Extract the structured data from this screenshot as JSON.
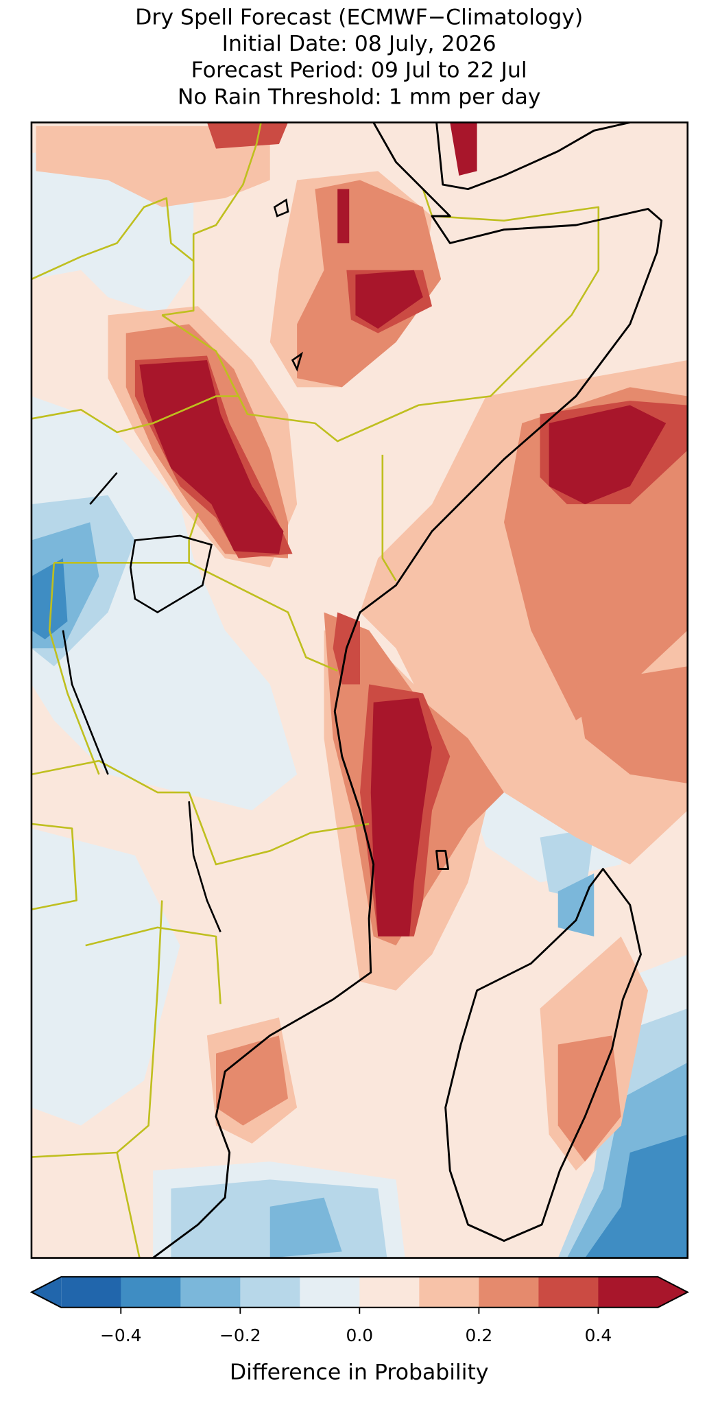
{
  "map": {
    "title_lines": [
      "Dry Spell Forecast (ECMWF−Climatology)",
      "Initial Date: 08 July, 2026",
      "Forecast Period: 09 Jul to 22 Jul",
      "No Rain Threshold: 1 mm per day"
    ],
    "colorbar": {
      "label": "Difference in Probability",
      "bounds": [
        -0.5,
        -0.4,
        -0.3,
        -0.2,
        -0.1,
        0,
        0.1,
        0.2,
        0.3,
        0.4,
        0.5
      ],
      "colors": [
        "#2166ac",
        "#3f8dc3",
        "#7bb7da",
        "#b7d7e9",
        "#e5eef3",
        "#fae7dc",
        "#f7c2a8",
        "#e58a6d",
        "#cb4b43",
        "#a8162b"
      ],
      "extend": "both",
      "ticks": [
        {
          "value": -0.4,
          "label": "−0.4"
        },
        {
          "value": -0.2,
          "label": "−0.2"
        },
        {
          "value": 0,
          "label": "0.0"
        },
        {
          "value": 0.2,
          "label": "0.2"
        },
        {
          "value": 0.4,
          "label": "0.4"
        }
      ]
    }
  }
}
